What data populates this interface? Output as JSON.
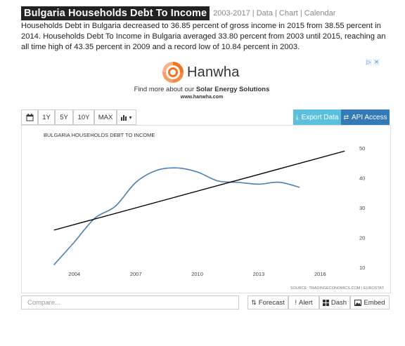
{
  "header": {
    "title": "Bulgaria Households Debt To Income",
    "links": "2003-2017 | Data | Chart | Calendar"
  },
  "description": "Households Debt in Bulgaria decreased to 36.85 percent of gross income in 2015 from 38.55 percent in 2014. Households Debt To Income in Bulgaria averaged 33.80 percent from 2003 until 2015, reaching an all time high of 43.35 percent in 2009 and a record low of 10.84 percent in 2003.",
  "ad": {
    "brand": "Hanwha",
    "tagline_prefix": "Find more about our ",
    "tagline_bold": "Solar Energy Solutions",
    "url": "www.hanwha.com",
    "brand_color": "#f37321"
  },
  "toolbar": {
    "calendar_icon": "calendar-icon",
    "range_buttons": [
      "1Y",
      "5Y",
      "10Y",
      "MAX"
    ],
    "chart_type_label": "▾",
    "export_label": "Export Data",
    "api_label": "API Access",
    "export_color": "#5bc0de",
    "api_color": "#337ab7"
  },
  "chart_data": {
    "type": "line",
    "title": "BULGARIA HOUSEHOLDS DEBT TO INCOME",
    "source": "SOURCE: TRADINGECONOMICS.COM | EUROSTAT",
    "x_ticks": [
      "2004",
      "2007",
      "2010",
      "2013",
      "2016"
    ],
    "y_ticks": [
      10,
      20,
      30,
      40,
      50
    ],
    "ylim": [
      10,
      50
    ],
    "xlim": [
      2002.6,
      2017.5
    ],
    "series": [
      {
        "color": "#4a7fb5",
        "x": [
          2003,
          2004,
          2005,
          2006,
          2007,
          2008,
          2009,
          2010,
          2011,
          2012,
          2013,
          2014,
          2015
        ],
        "y": [
          10.84,
          18.5,
          26.5,
          30.5,
          38.5,
          42.5,
          43.35,
          42.0,
          39.0,
          38.5,
          37.9,
          38.55,
          36.85
        ]
      },
      {
        "color": "#000000",
        "x": [
          2003,
          2017.2
        ],
        "y": [
          22.5,
          49.0
        ]
      }
    ],
    "grid": false
  },
  "bottom": {
    "compare_placeholder": "Compare...",
    "forecast_label": "Forecast",
    "alert_label": "Alert",
    "dash_label": "Dash",
    "embed_label": "Embed"
  }
}
